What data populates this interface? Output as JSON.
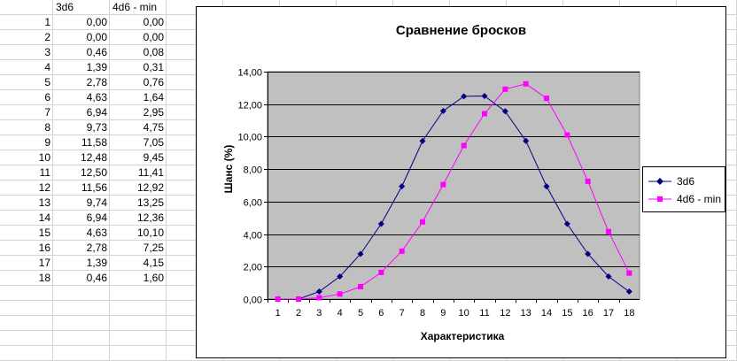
{
  "sheet": {
    "col_b_header": "3d6",
    "col_c_header": "4d6 - min",
    "rows": [
      {
        "n": "1",
        "a": "0,00",
        "b": "0,00"
      },
      {
        "n": "2",
        "a": "0,00",
        "b": "0,00"
      },
      {
        "n": "3",
        "a": "0,46",
        "b": "0,08"
      },
      {
        "n": "4",
        "a": "1,39",
        "b": "0,31"
      },
      {
        "n": "5",
        "a": "2,78",
        "b": "0,76"
      },
      {
        "n": "6",
        "a": "4,63",
        "b": "1,64"
      },
      {
        "n": "7",
        "a": "6,94",
        "b": "2,95"
      },
      {
        "n": "8",
        "a": "9,73",
        "b": "4,75"
      },
      {
        "n": "9",
        "a": "11,58",
        "b": "7,05"
      },
      {
        "n": "10",
        "a": "12,48",
        "b": "9,45"
      },
      {
        "n": "11",
        "a": "12,50",
        "b": "11,41"
      },
      {
        "n": "12",
        "a": "11,56",
        "b": "12,92"
      },
      {
        "n": "13",
        "a": "9,74",
        "b": "13,25"
      },
      {
        "n": "14",
        "a": "6,94",
        "b": "12,36"
      },
      {
        "n": "15",
        "a": "4,63",
        "b": "10,10"
      },
      {
        "n": "16",
        "a": "2,78",
        "b": "7,25"
      },
      {
        "n": "17",
        "a": "1,39",
        "b": "4,15"
      },
      {
        "n": "18",
        "a": "0,46",
        "b": "1,60"
      }
    ]
  },
  "chart_data": {
    "type": "line",
    "title": "Сравнение бросков",
    "xlabel": "Характеристика",
    "ylabel": "Шанс (%)",
    "categories": [
      "1",
      "2",
      "3",
      "4",
      "5",
      "6",
      "7",
      "8",
      "9",
      "10",
      "11",
      "12",
      "13",
      "14",
      "15",
      "16",
      "17",
      "18"
    ],
    "yticks": [
      "0,00",
      "2,00",
      "4,00",
      "6,00",
      "8,00",
      "10,00",
      "12,00",
      "14,00"
    ],
    "ylim": [
      0,
      14
    ],
    "grid": true,
    "legend_position": "right",
    "plot_background": "#C0C0C0",
    "series": [
      {
        "name": "3d6",
        "color": "#000080",
        "marker": "diamond",
        "values": [
          0,
          0,
          0.46,
          1.39,
          2.78,
          4.63,
          6.94,
          9.73,
          11.58,
          12.48,
          12.5,
          11.56,
          9.74,
          6.94,
          4.63,
          2.78,
          1.39,
          0.46
        ]
      },
      {
        "name": "4d6 - min",
        "color": "#FF00FF",
        "marker": "square",
        "values": [
          0,
          0,
          0.08,
          0.31,
          0.76,
          1.64,
          2.95,
          4.75,
          7.05,
          9.45,
          11.41,
          12.92,
          13.25,
          12.36,
          10.1,
          7.25,
          4.15,
          1.6
        ]
      }
    ]
  }
}
